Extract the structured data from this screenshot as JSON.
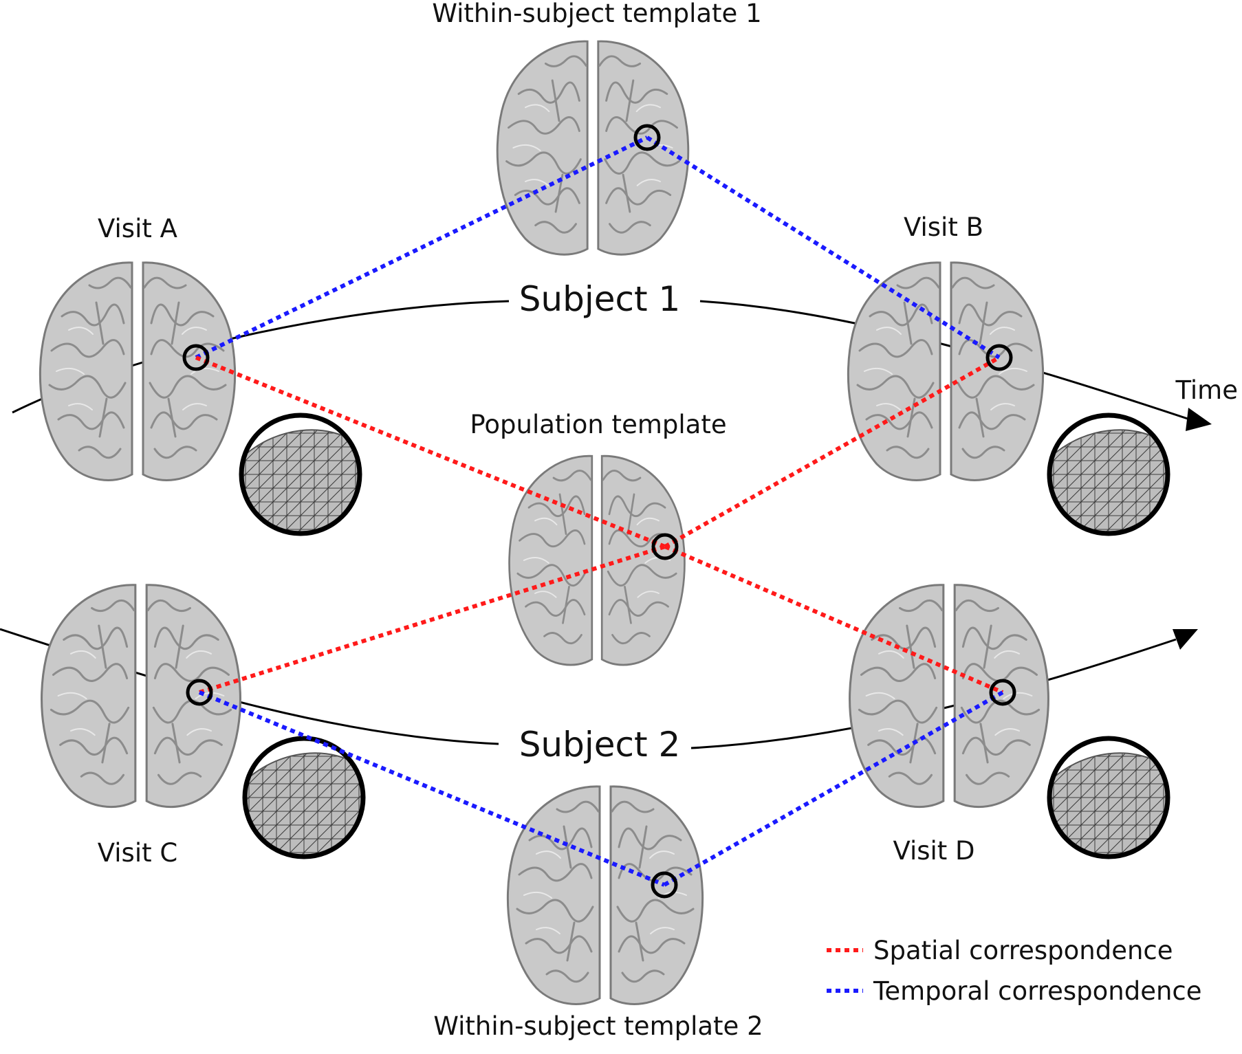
{
  "labels": {
    "within_template_1": "Within-subject template 1",
    "within_template_2": "Within-subject template 2",
    "population_template": "Population template",
    "visit_a": "Visit A",
    "visit_b": "Visit B",
    "visit_c": "Visit C",
    "visit_d": "Visit D",
    "subject_1": "Subject 1",
    "subject_2": "Subject 2",
    "time": "Time"
  },
  "legend": {
    "spatial": "Spatial correspondence",
    "temporal": "Temporal correspondence"
  },
  "colors": {
    "spatial": "#ff1a1a",
    "temporal": "#1a1aff",
    "brain_fill": "#c9c9c9",
    "brain_stroke": "#7a7a7a",
    "mesh": "#333333",
    "ink": "#000000"
  },
  "icons": {
    "brain": "brain-render",
    "mesh_inset": "triangle-mesh-zoom",
    "marker": "correspondence-circle"
  }
}
